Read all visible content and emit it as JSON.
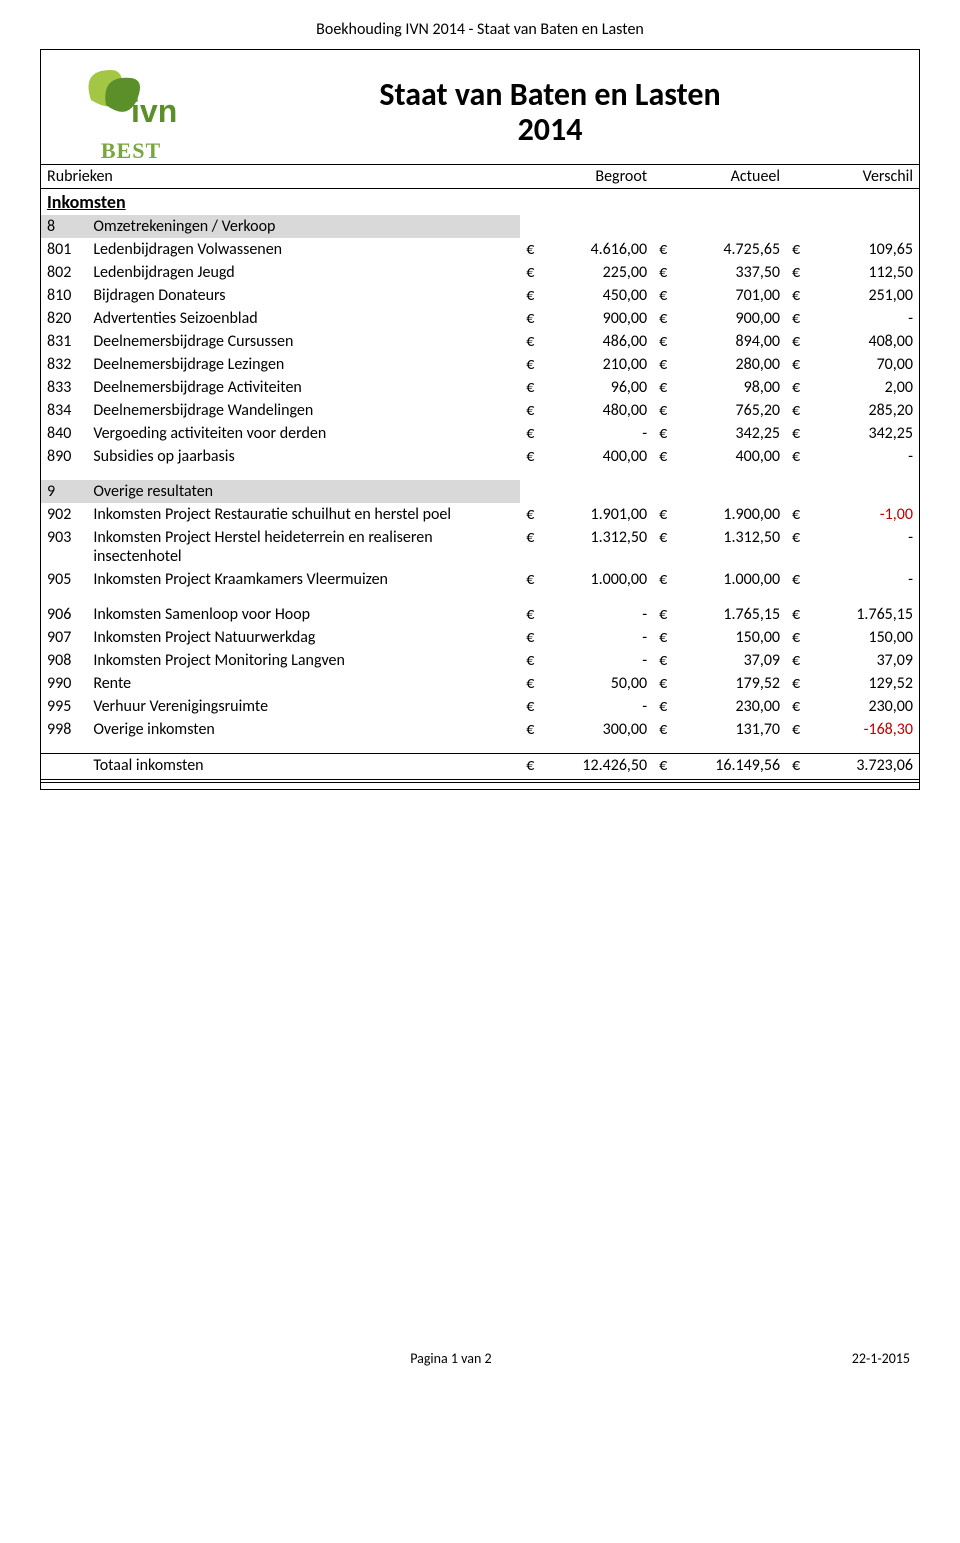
{
  "doc_header": "Boekhouding IVN 2014 - Staat van Baten en Lasten",
  "title_line1": "Staat van Baten en Lasten",
  "title_line2": "2014",
  "logo_label": "BEST",
  "logo": {
    "leaf1": "#a3c644",
    "leaf2": "#5a8f29",
    "text_color": "#5a8f29"
  },
  "column_headers": {
    "rubrieken": "Rubrieken",
    "begroot": "Begroot",
    "actueel": "Actueel",
    "verschil": "Verschil"
  },
  "currency": "€",
  "section_inkomsten": "Inkomsten",
  "group8": {
    "code": "8",
    "label": "Omzetrekeningen / Verkoop"
  },
  "rows8": [
    {
      "code": "801",
      "label": "Ledenbijdragen Volwassenen",
      "begroot": "4.616,00",
      "actueel": "4.725,65",
      "verschil": "109,65",
      "neg": false
    },
    {
      "code": "802",
      "label": "Ledenbijdragen Jeugd",
      "begroot": "225,00",
      "actueel": "337,50",
      "verschil": "112,50",
      "neg": false
    },
    {
      "code": "810",
      "label": "Bijdragen Donateurs",
      "begroot": "450,00",
      "actueel": "701,00",
      "verschil": "251,00",
      "neg": false
    },
    {
      "code": "820",
      "label": "Advertenties Seizoenblad",
      "begroot": "900,00",
      "actueel": "900,00",
      "verschil": "-",
      "neg": false
    },
    {
      "code": "831",
      "label": "Deelnemersbijdrage Cursussen",
      "begroot": "486,00",
      "actueel": "894,00",
      "verschil": "408,00",
      "neg": false
    },
    {
      "code": "832",
      "label": "Deelnemersbijdrage Lezingen",
      "begroot": "210,00",
      "actueel": "280,00",
      "verschil": "70,00",
      "neg": false
    },
    {
      "code": "833",
      "label": "Deelnemersbijdrage Activiteiten",
      "begroot": "96,00",
      "actueel": "98,00",
      "verschil": "2,00",
      "neg": false
    },
    {
      "code": "834",
      "label": "Deelnemersbijdrage Wandelingen",
      "begroot": "480,00",
      "actueel": "765,20",
      "verschil": "285,20",
      "neg": false
    },
    {
      "code": "840",
      "label": "Vergoeding activiteiten voor derden",
      "begroot": "-",
      "actueel": "342,25",
      "verschil": "342,25",
      "neg": false
    },
    {
      "code": "890",
      "label": "Subsidies op jaarbasis",
      "begroot": "400,00",
      "actueel": "400,00",
      "verschil": "-",
      "neg": false
    }
  ],
  "group9": {
    "code": "9",
    "label": "Overige resultaten"
  },
  "rows9a": [
    {
      "code": "902",
      "label": "Inkomsten Project Restauratie schuilhut en herstel poel",
      "begroot": "1.901,00",
      "actueel": "1.900,00",
      "verschil": "-1,00",
      "neg": true
    },
    {
      "code": "903",
      "label": "Inkomsten Project Herstel heideterrein en realiseren insectenhotel",
      "begroot": "1.312,50",
      "actueel": "1.312,50",
      "verschil": "-",
      "neg": false
    },
    {
      "code": "905",
      "label": "Inkomsten Project Kraamkamers Vleermuizen",
      "begroot": "1.000,00",
      "actueel": "1.000,00",
      "verschil": "-",
      "neg": false
    }
  ],
  "rows9b": [
    {
      "code": "906",
      "label": "Inkomsten Samenloop voor Hoop",
      "begroot": "-",
      "actueel": "1.765,15",
      "verschil": "1.765,15",
      "neg": false
    },
    {
      "code": "907",
      "label": "Inkomsten Project Natuurwerkdag",
      "begroot": "-",
      "actueel": "150,00",
      "verschil": "150,00",
      "neg": false
    },
    {
      "code": "908",
      "label": "Inkomsten Project Monitoring Langven",
      "begroot": "-",
      "actueel": "37,09",
      "verschil": "37,09",
      "neg": false
    },
    {
      "code": "990",
      "label": "Rente",
      "begroot": "50,00",
      "actueel": "179,52",
      "verschil": "129,52",
      "neg": false
    },
    {
      "code": "995",
      "label": "Verhuur Verenigingsruimte",
      "begroot": "-",
      "actueel": "230,00",
      "verschil": "230,00",
      "neg": false
    },
    {
      "code": "998",
      "label": "Overige inkomsten",
      "begroot": "300,00",
      "actueel": "131,70",
      "verschil": "-168,30",
      "neg": true
    }
  ],
  "total": {
    "label": "Totaal inkomsten",
    "begroot": "12.426,50",
    "actueel": "16.149,56",
    "verschil": "3.723,06",
    "neg": false
  },
  "footer": {
    "left": "",
    "center": "Pagina 1 van 2",
    "right": "22-1-2015"
  }
}
